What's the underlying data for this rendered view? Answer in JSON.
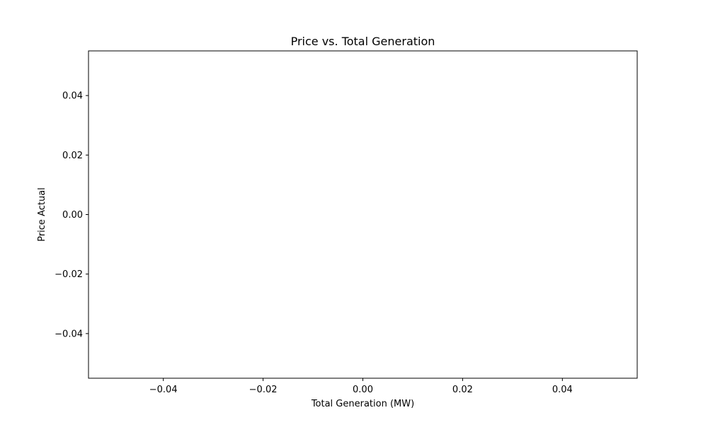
{
  "chart_data": {
    "type": "scatter",
    "title": "Price vs. Total Generation",
    "xlabel": "Total Generation (MW)",
    "ylabel": "Price Actual",
    "xlim": [
      -0.055,
      0.055
    ],
    "ylim": [
      -0.055,
      0.055
    ],
    "x_ticks": [
      -0.04,
      -0.02,
      0.0,
      0.02,
      0.04
    ],
    "x_tick_labels": [
      "−0.04",
      "−0.02",
      "0.00",
      "0.02",
      "0.04"
    ],
    "y_ticks": [
      -0.04,
      -0.02,
      0.0,
      0.02,
      0.04
    ],
    "y_tick_labels": [
      "−0.04",
      "−0.02",
      "0.00",
      "0.02",
      "0.04"
    ],
    "grid": false,
    "series": [
      {
        "x": [],
        "y": []
      }
    ]
  }
}
